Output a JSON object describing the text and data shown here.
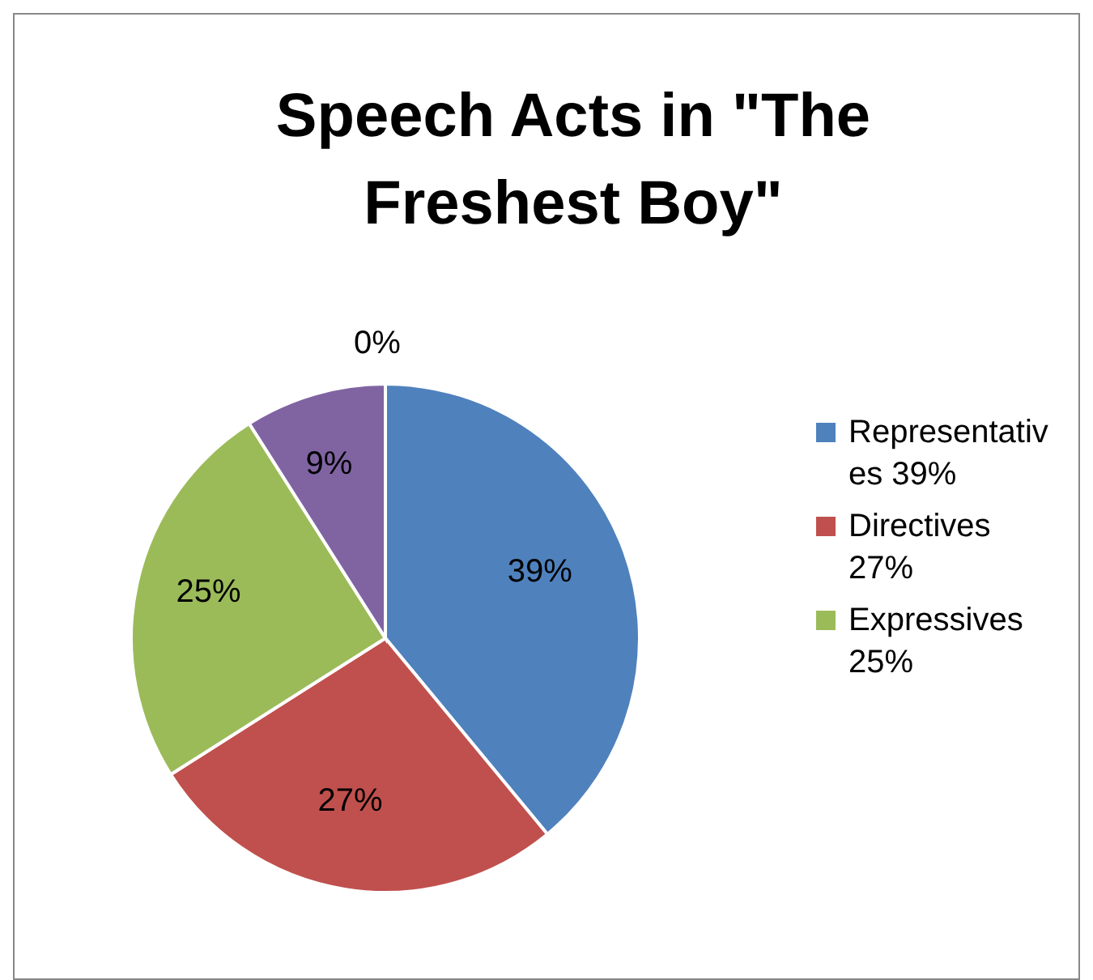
{
  "chart_data": {
    "type": "pie",
    "title": "Speech Acts in \"The Freshest Boy\"",
    "categories": [
      "Representatives 39%",
      "Directives 27%",
      "Expressives 25%",
      null,
      null
    ],
    "values": [
      39,
      27,
      25,
      9,
      0
    ],
    "colors": [
      "#4f81bd",
      "#c0504d",
      "#9bbb59",
      "#8064a2",
      "#4bacc6"
    ],
    "value_labels": [
      "39%",
      "27%",
      "25%",
      "9%",
      "0%"
    ],
    "legend": "right"
  }
}
